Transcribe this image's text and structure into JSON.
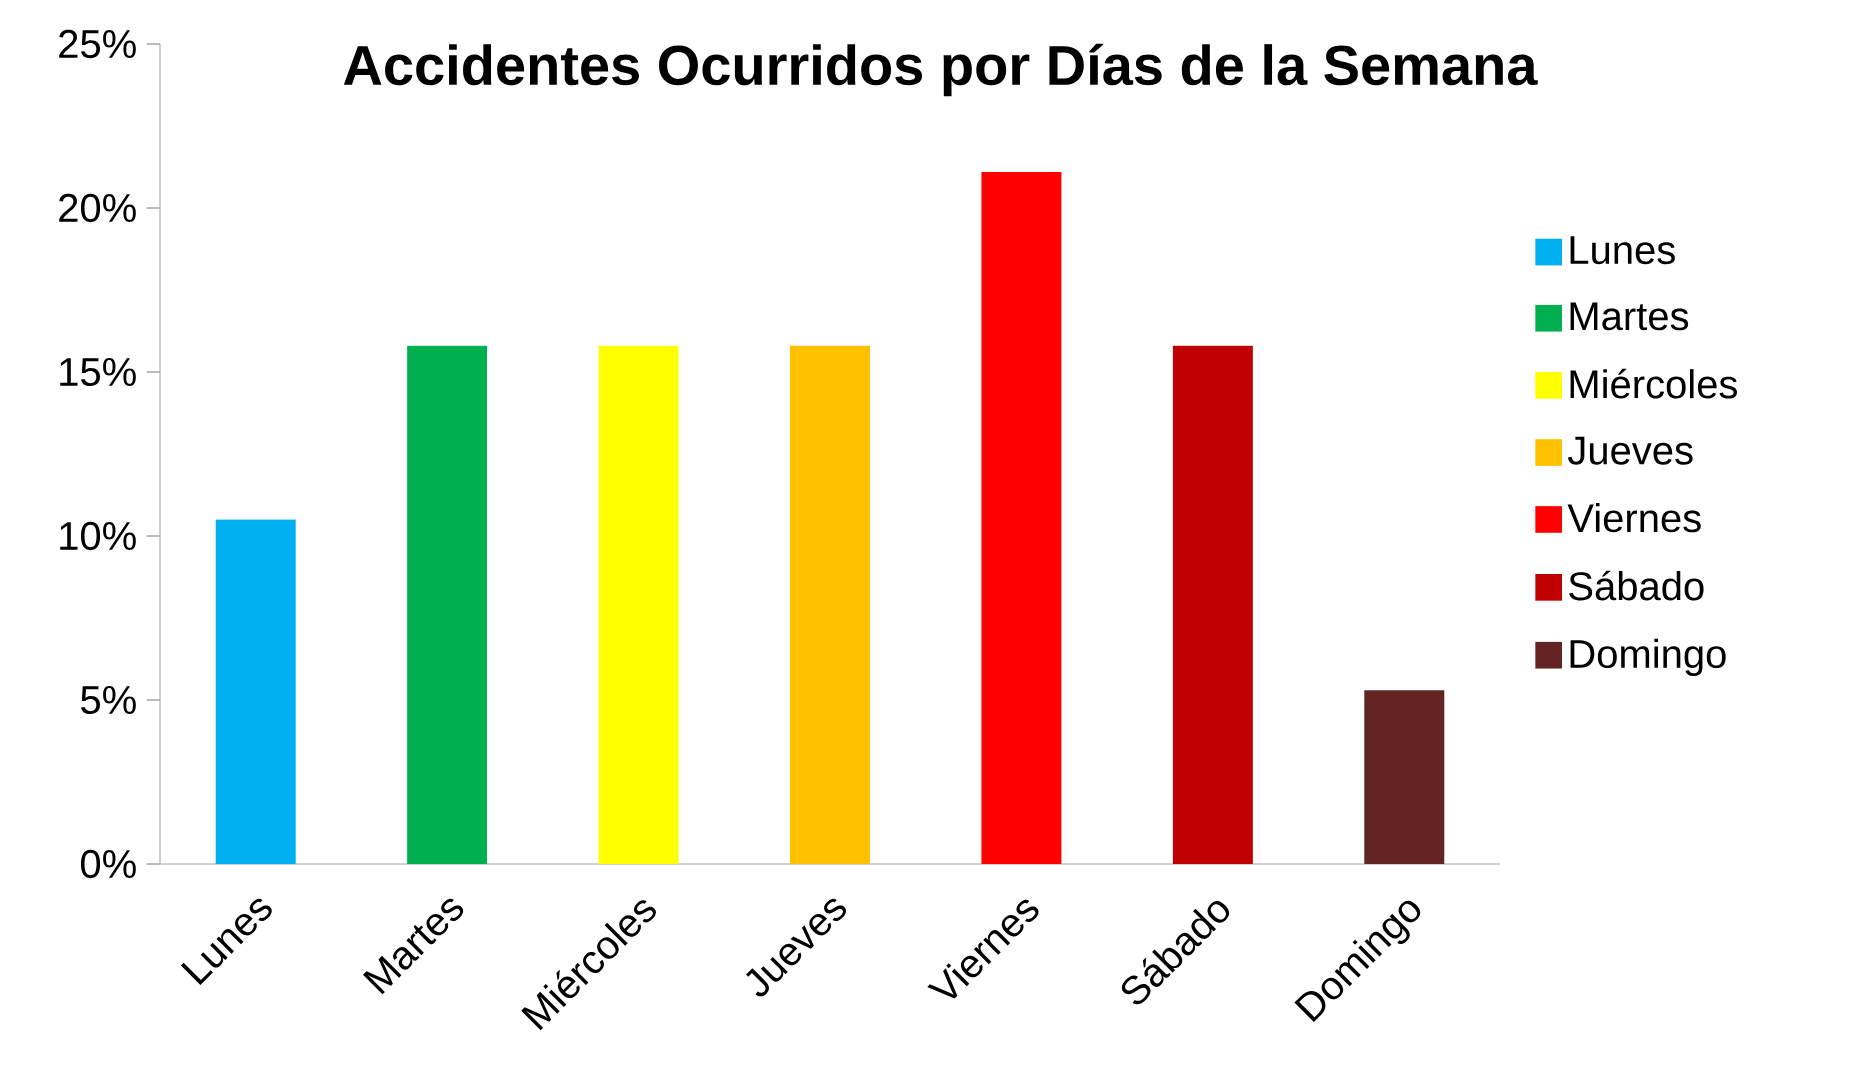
{
  "chart_data": {
    "type": "bar",
    "title": "Accidentes Ocurridos por Días de la Semana",
    "categories": [
      "Lunes",
      "Martes",
      "Miércoles",
      "Jueves",
      "Viernes",
      "Sábado",
      "Domingo"
    ],
    "series": [
      {
        "name": "Lunes",
        "color": "#00b0f0",
        "values": [
          10.5,
          null,
          null,
          null,
          null,
          null,
          null
        ]
      },
      {
        "name": "Martes",
        "color": "#00b050",
        "values": [
          null,
          15.8,
          null,
          null,
          null,
          null,
          null
        ]
      },
      {
        "name": "Miércoles",
        "color": "#ffff00",
        "values": [
          null,
          null,
          15.8,
          null,
          null,
          null,
          null
        ]
      },
      {
        "name": "Jueves",
        "color": "#ffc000",
        "values": [
          null,
          null,
          null,
          15.8,
          null,
          null,
          null
        ]
      },
      {
        "name": "Viernes",
        "color": "#ff0000",
        "values": [
          null,
          null,
          null,
          null,
          21.1,
          null,
          null
        ]
      },
      {
        "name": "Sábado",
        "color": "#c00000",
        "values": [
          null,
          null,
          null,
          null,
          null,
          15.8,
          null
        ]
      },
      {
        "name": "Domingo",
        "color": "#632523",
        "values": [
          null,
          null,
          null,
          null,
          null,
          null,
          5.3
        ]
      }
    ],
    "ylim": [
      0,
      25
    ],
    "yticks": [
      {
        "value": 0,
        "label": "0%"
      },
      {
        "value": 5,
        "label": "5%"
      },
      {
        "value": 10,
        "label": "10%"
      },
      {
        "value": 15,
        "label": "15%"
      },
      {
        "value": 20,
        "label": "20%"
      },
      {
        "value": 25,
        "label": "25%"
      }
    ],
    "legend": "right",
    "grid": false
  }
}
